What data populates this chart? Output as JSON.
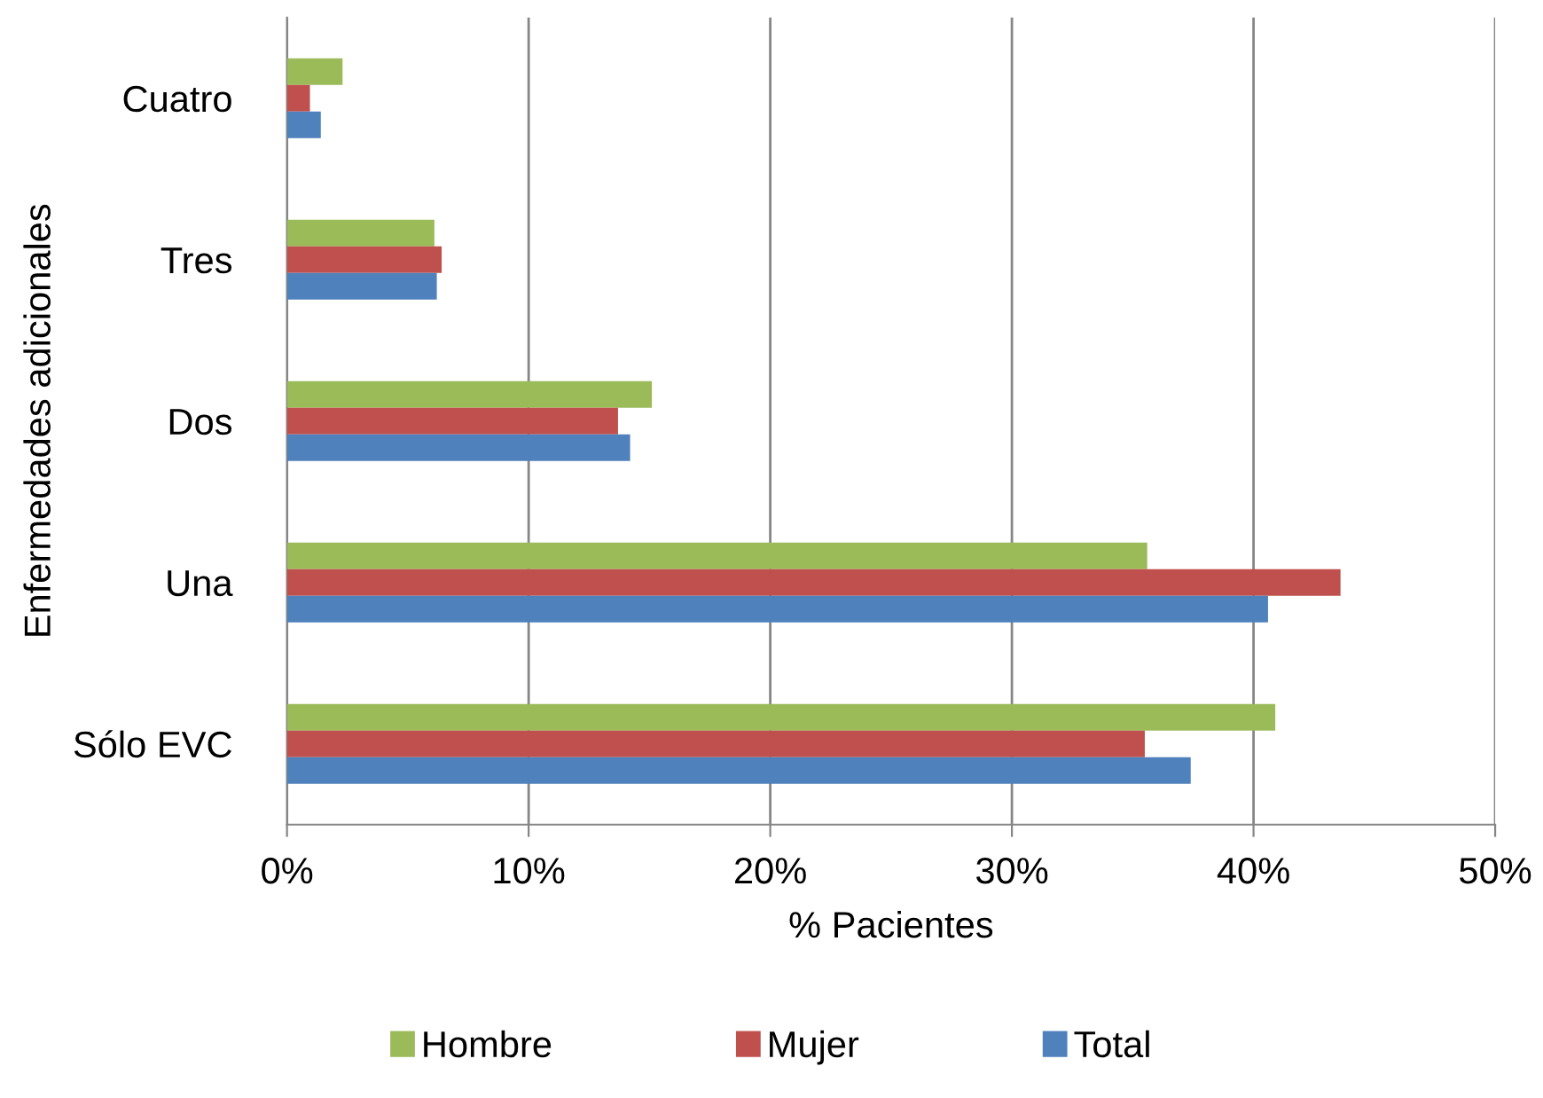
{
  "chart_data": {
    "type": "bar",
    "orientation": "horizontal",
    "xlabel": "% Pacientes",
    "ylabel": "Enfermedades adicionales",
    "categories": [
      "Cuatro",
      "Tres",
      "Dos",
      "Una",
      "Sólo EVC"
    ],
    "series": [
      {
        "name": "Hombre",
        "color": "#9bbb59",
        "values": [
          2.3,
          6.1,
          15.1,
          35.6,
          40.9
        ]
      },
      {
        "name": "Mujer",
        "color": "#c0504d",
        "values": [
          0.95,
          6.4,
          13.7,
          43.6,
          35.5
        ]
      },
      {
        "name": "Total",
        "color": "#4f81bd",
        "values": [
          1.4,
          6.2,
          14.2,
          40.6,
          37.4
        ]
      }
    ],
    "xlim": [
      0,
      50
    ],
    "xticks": [
      {
        "value": 0,
        "label": "0%"
      },
      {
        "value": 10,
        "label": "10%"
      },
      {
        "value": 20,
        "label": "20%"
      },
      {
        "value": 30,
        "label": "30%"
      },
      {
        "value": 40,
        "label": "40%"
      },
      {
        "value": 50,
        "label": "50%"
      }
    ],
    "grid": "x",
    "legend": "bottom"
  }
}
